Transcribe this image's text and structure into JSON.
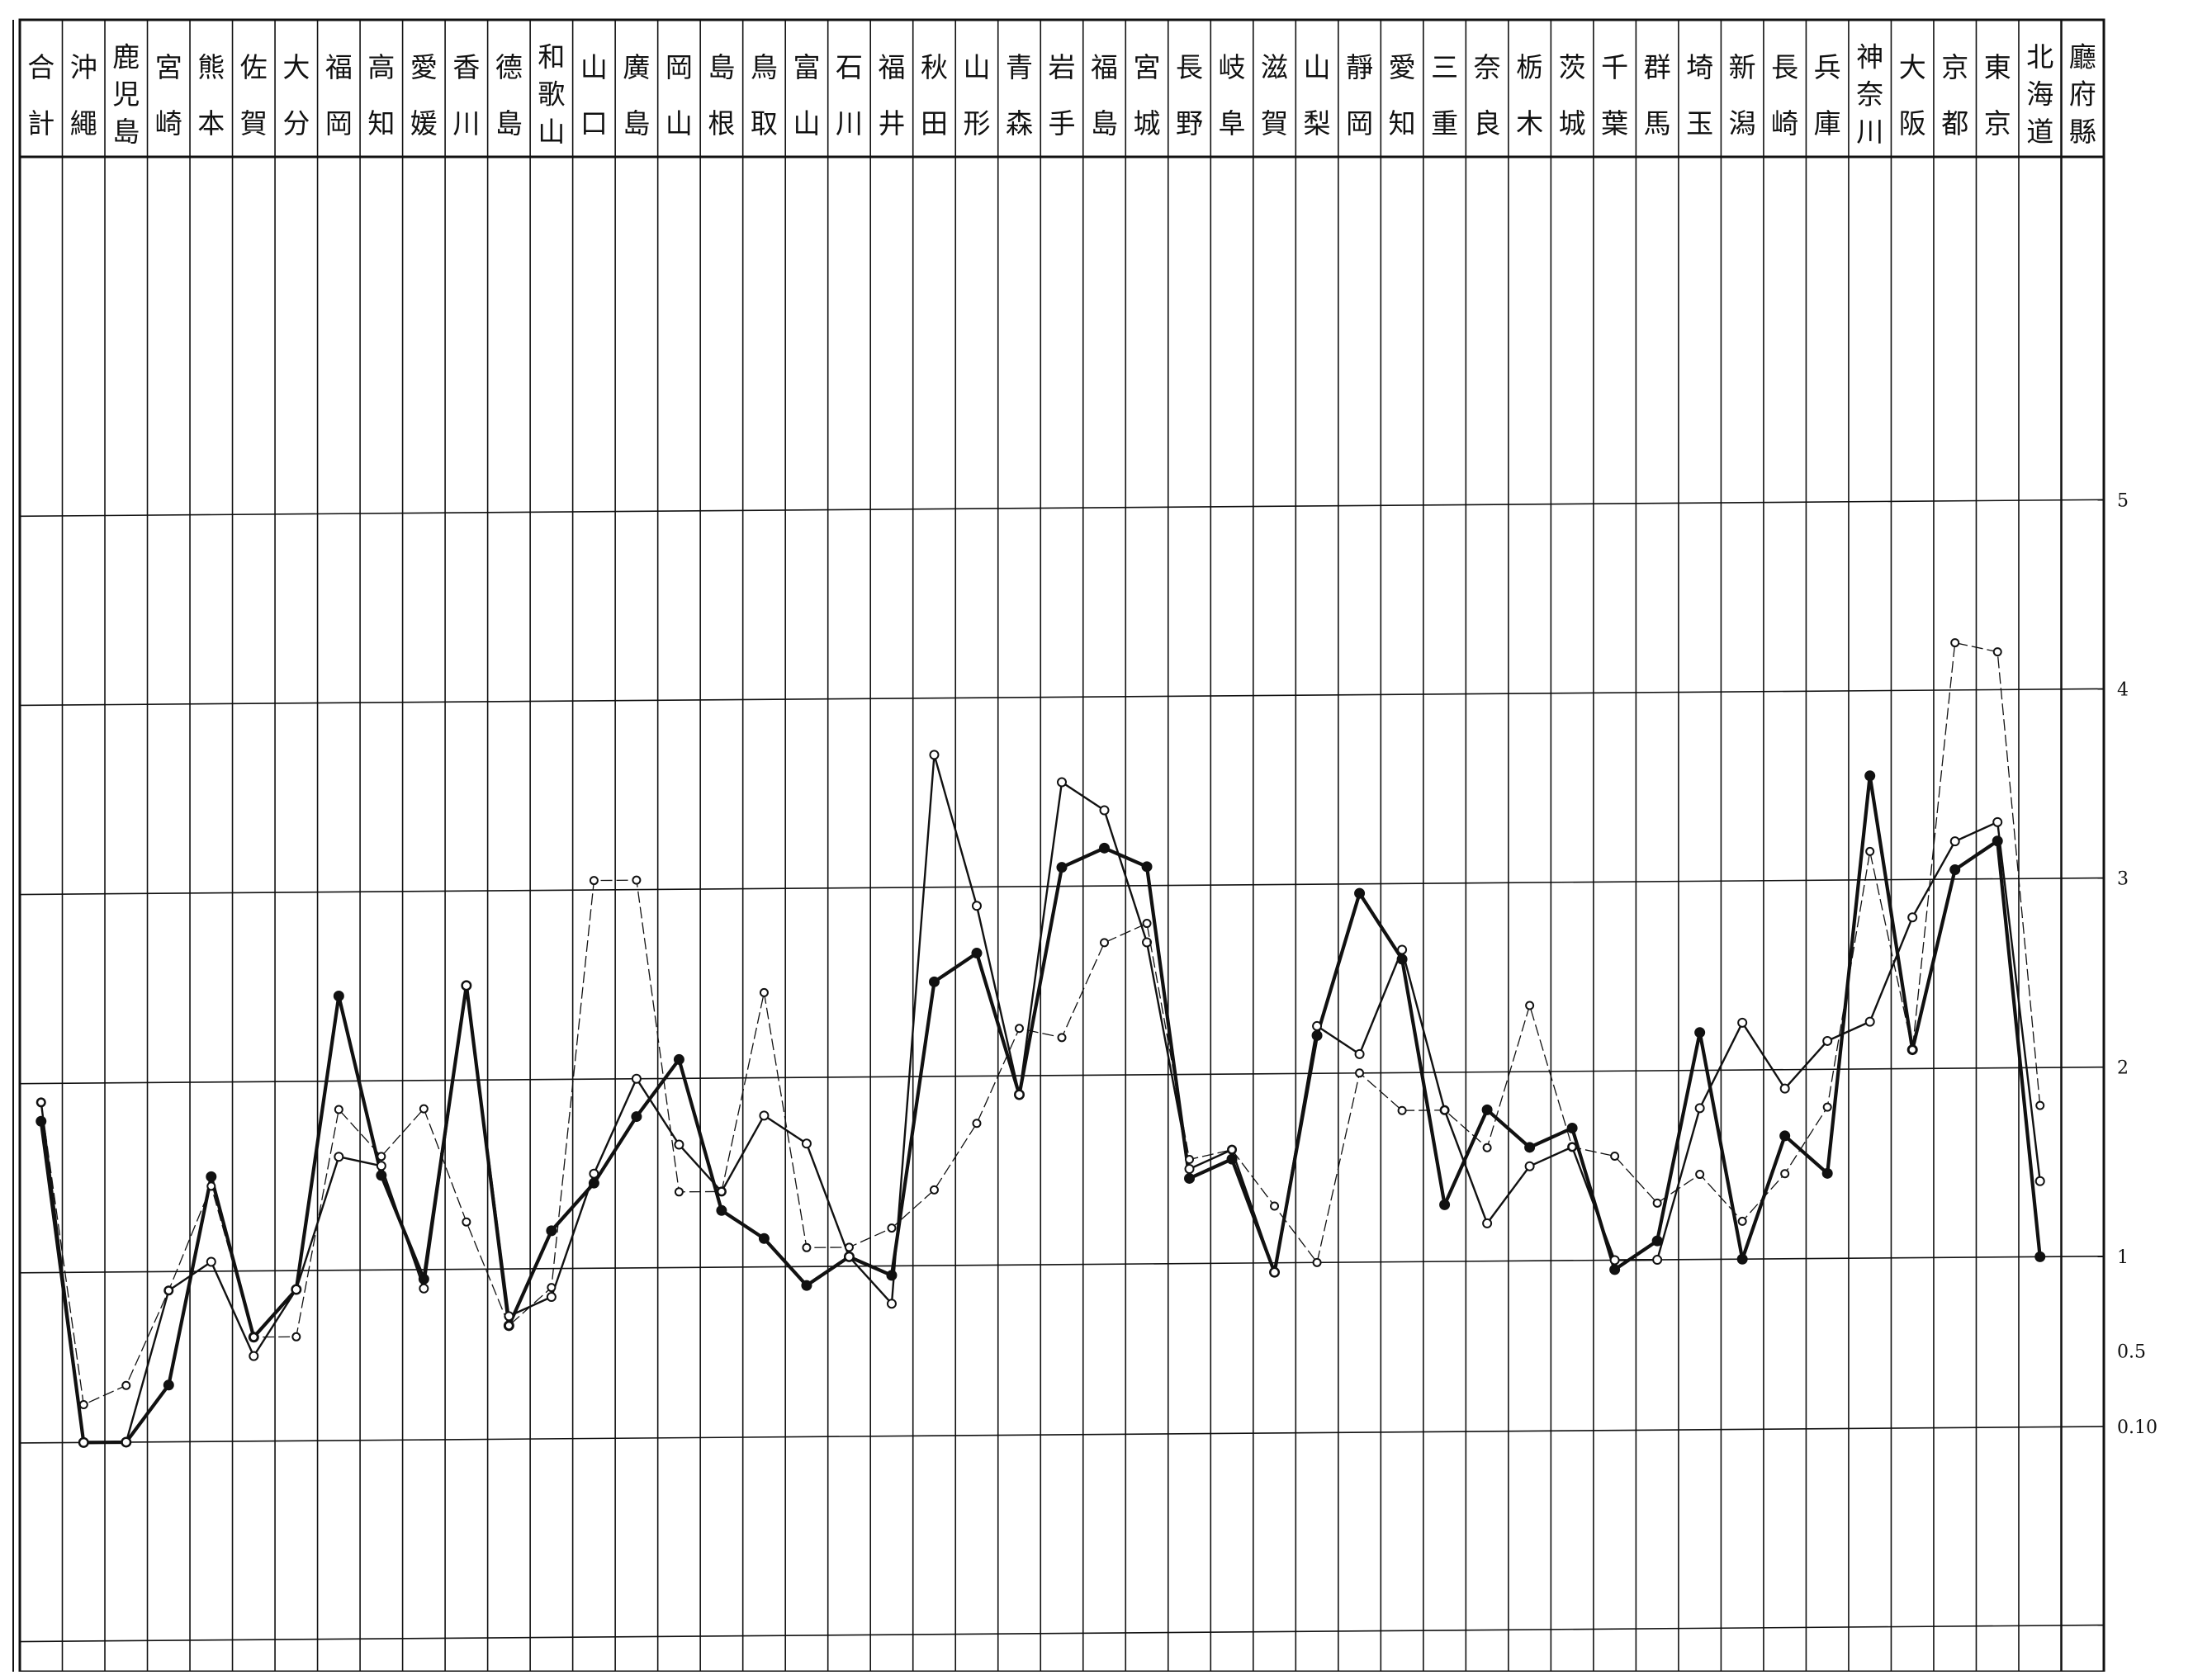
{
  "chart_data": {
    "type": "line",
    "title": "",
    "xlabel": "",
    "ylabel": "",
    "x_reversed": true,
    "corner_header": "廳府縣",
    "categories": [
      "北海道",
      "東京",
      "京都",
      "大阪",
      "神奈川",
      "兵庫",
      "長崎",
      "新潟",
      "埼玉",
      "群馬",
      "千葉",
      "茨城",
      "栃木",
      "奈良",
      "三重",
      "愛知",
      "靜岡",
      "山梨",
      "滋賀",
      "岐阜",
      "長野",
      "宮城",
      "福島",
      "岩手",
      "青森",
      "山形",
      "秋田",
      "福井",
      "石川",
      "富山",
      "鳥取",
      "島根",
      "岡山",
      "廣島",
      "山口",
      "和歌山",
      "德島",
      "香川",
      "愛媛",
      "高知",
      "福岡",
      "大分",
      "佐賀",
      "熊本",
      "宮崎",
      "鹿児島",
      "沖繩",
      "合計"
    ],
    "y_ticks": [
      {
        "label": "0.10",
        "value": 0.1
      },
      {
        "label": "0.5",
        "value": 0.5
      },
      {
        "label": "1",
        "value": 1
      },
      {
        "label": "2",
        "value": 2
      },
      {
        "label": "3",
        "value": 3
      },
      {
        "label": "4",
        "value": 4
      },
      {
        "label": "5",
        "value": 5
      }
    ],
    "ylim": [
      -1.0,
      6.9
    ],
    "series": [
      {
        "style": "heavy",
        "values": [
          1.0,
          3.2,
          3.05,
          2.1,
          3.55,
          1.45,
          1.65,
          1.0,
          2.2,
          1.1,
          0.95,
          1.7,
          1.6,
          1.8,
          1.3,
          2.6,
          2.95,
          2.2,
          0.95,
          1.55,
          1.45,
          3.1,
          3.2,
          3.1,
          1.9,
          2.65,
          2.5,
          0.95,
          1.05,
          0.9,
          1.15,
          1.3,
          2.1,
          1.8,
          1.45,
          1.2,
          0.7,
          2.5,
          0.95,
          1.5,
          2.45,
          0.9,
          0.65,
          1.5,
          0.4,
          0.1,
          0.1,
          1.8
        ]
      },
      {
        "style": "medium",
        "values": [
          1.4,
          3.3,
          3.2,
          2.8,
          2.25,
          2.15,
          1.9,
          2.25,
          1.8,
          1.0,
          1.0,
          1.6,
          1.5,
          1.2,
          1.8,
          2.65,
          2.1,
          2.25,
          0.95,
          1.6,
          1.5,
          2.7,
          3.4,
          3.55,
          1.9,
          2.9,
          3.7,
          0.8,
          1.05,
          1.65,
          1.8,
          1.4,
          1.65,
          2.0,
          1.5,
          0.85,
          0.75,
          2.5,
          0.9,
          1.55,
          1.6,
          0.9,
          0.55,
          1.05,
          0.9,
          0.1,
          0.1,
          1.9
        ]
      },
      {
        "style": "light",
        "values": [
          1.8,
          4.2,
          4.25,
          2.1,
          3.15,
          1.8,
          1.45,
          1.2,
          1.45,
          1.3,
          1.55,
          1.6,
          2.35,
          1.6,
          1.8,
          1.8,
          2.0,
          1.0,
          1.3,
          1.6,
          1.55,
          2.8,
          2.7,
          2.2,
          2.25,
          1.75,
          1.4,
          1.2,
          1.1,
          1.1,
          2.45,
          1.4,
          1.4,
          3.05,
          3.05,
          0.9,
          0.7,
          1.25,
          1.85,
          1.6,
          1.85,
          0.65,
          0.65,
          1.45,
          0.9,
          0.4,
          0.3,
          1.9
        ]
      }
    ]
  },
  "colors": {
    "ink": "#111111",
    "paper": "#ffffff",
    "faint": "#666666"
  }
}
